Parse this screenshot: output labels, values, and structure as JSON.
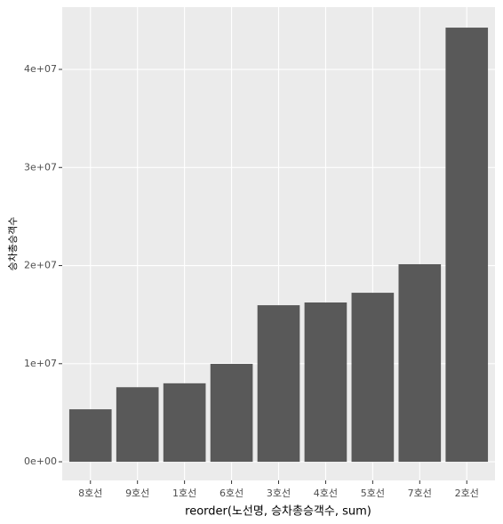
{
  "chart_data": {
    "type": "bar",
    "x_label": "reorder(노선명, 승차총승객수, sum)",
    "y_label": "승차총승객수",
    "categories": [
      "8호선",
      "9호선",
      "1호선",
      "6호선",
      "3호선",
      "4호선",
      "5호선",
      "7호선",
      "2호선"
    ],
    "values": [
      5350000,
      7600000,
      8000000,
      9980000,
      15960000,
      16240000,
      17230000,
      20140000,
      44260000
    ],
    "color": "#595959",
    "ylim": [
      -1900000,
      46350000
    ],
    "yticks": [
      {
        "value": 0,
        "label": "0e+00"
      },
      {
        "value": 10000000,
        "label": "1e+07"
      },
      {
        "value": 20000000,
        "label": "2e+07"
      },
      {
        "value": 30000000,
        "label": "3e+07"
      },
      {
        "value": 40000000,
        "label": "4e+07"
      }
    ],
    "grid": true
  }
}
